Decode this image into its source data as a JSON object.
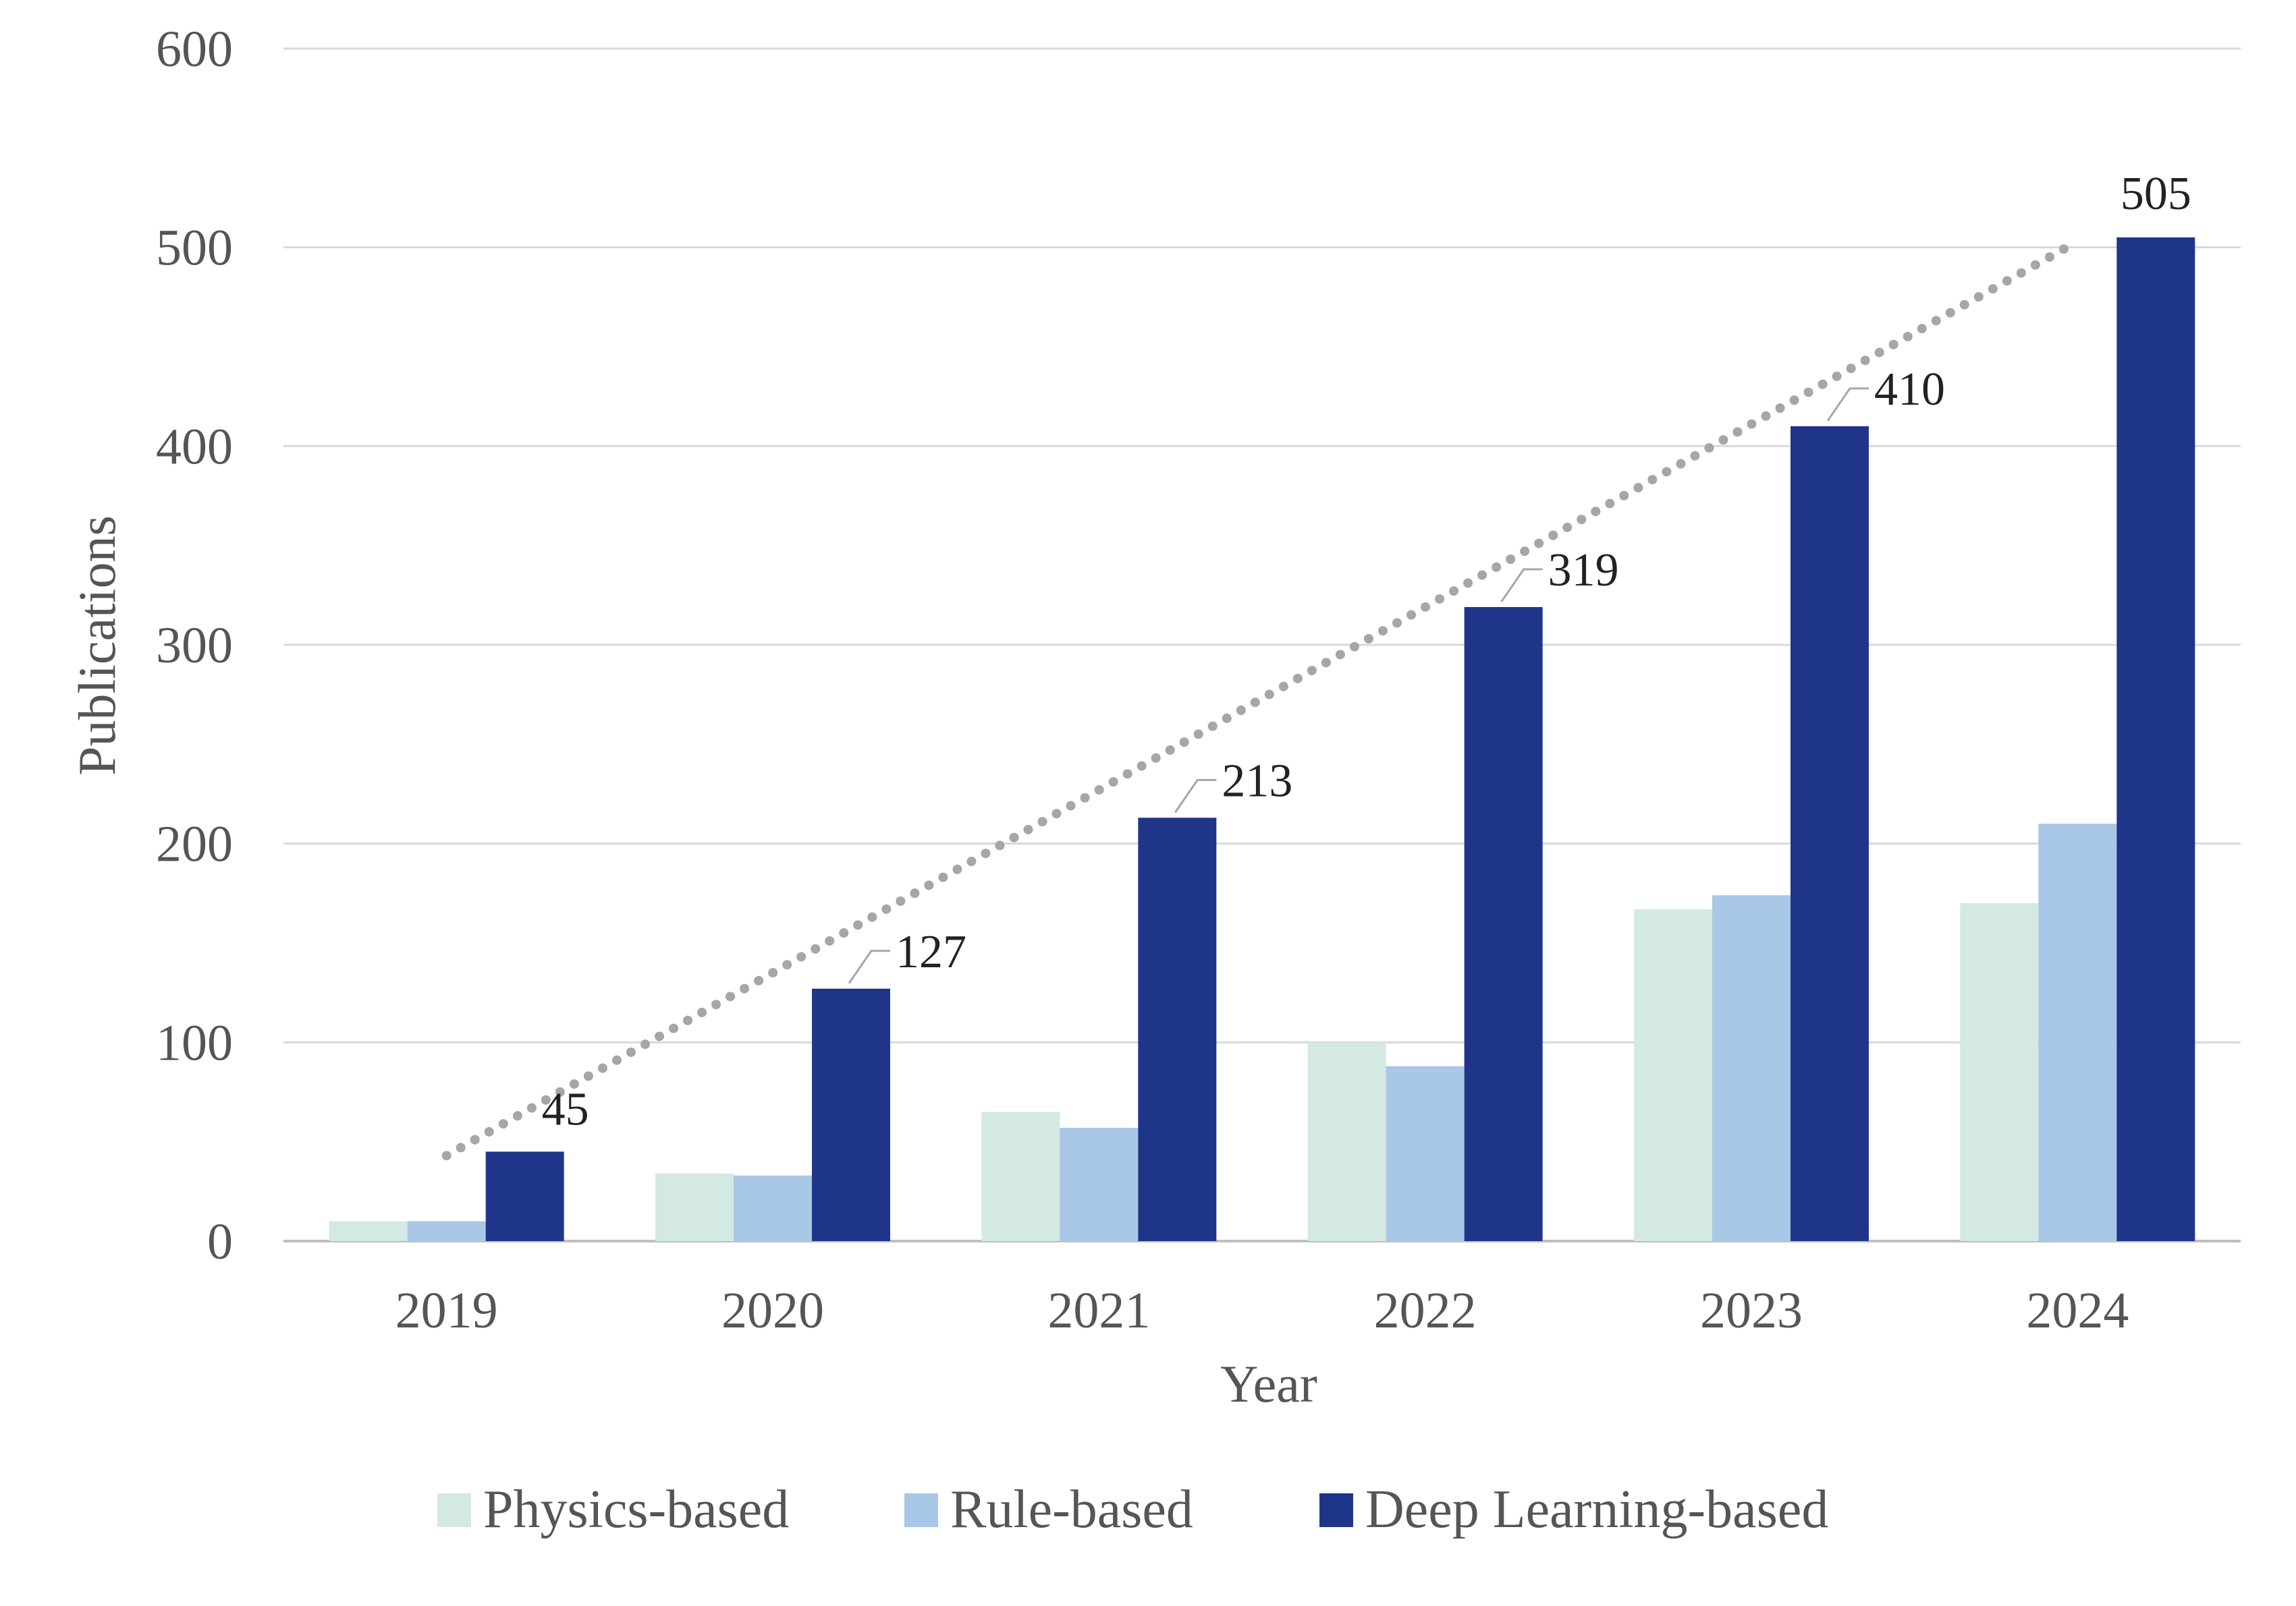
{
  "chart_data": {
    "type": "bar",
    "xlabel": "Year",
    "ylabel": "Publications",
    "ylim": [
      0,
      600
    ],
    "yticks": [
      0,
      100,
      200,
      300,
      400,
      500,
      600
    ],
    "categories": [
      "2019",
      "2020",
      "2021",
      "2022",
      "2023",
      "2024"
    ],
    "series": [
      {
        "name": "Physics-based",
        "color": "#d3e9e1",
        "values": [
          10,
          34,
          65,
          100,
          167,
          170
        ]
      },
      {
        "name": "Rule-based",
        "color": "#a9c7e6",
        "values": [
          10,
          33,
          57,
          88,
          174,
          210
        ]
      },
      {
        "name": "Deep Learning-based",
        "color": "#1f358a",
        "values": [
          45,
          127,
          213,
          319,
          410,
          505
        ],
        "data_labels": [
          "45",
          "127",
          "213",
          "319",
          "410",
          "505"
        ]
      }
    ],
    "trendline": {
      "style": "dotted",
      "color": "#a6a6a6",
      "from": 43,
      "to": 503
    },
    "grid": true,
    "legend_position": "bottom"
  }
}
